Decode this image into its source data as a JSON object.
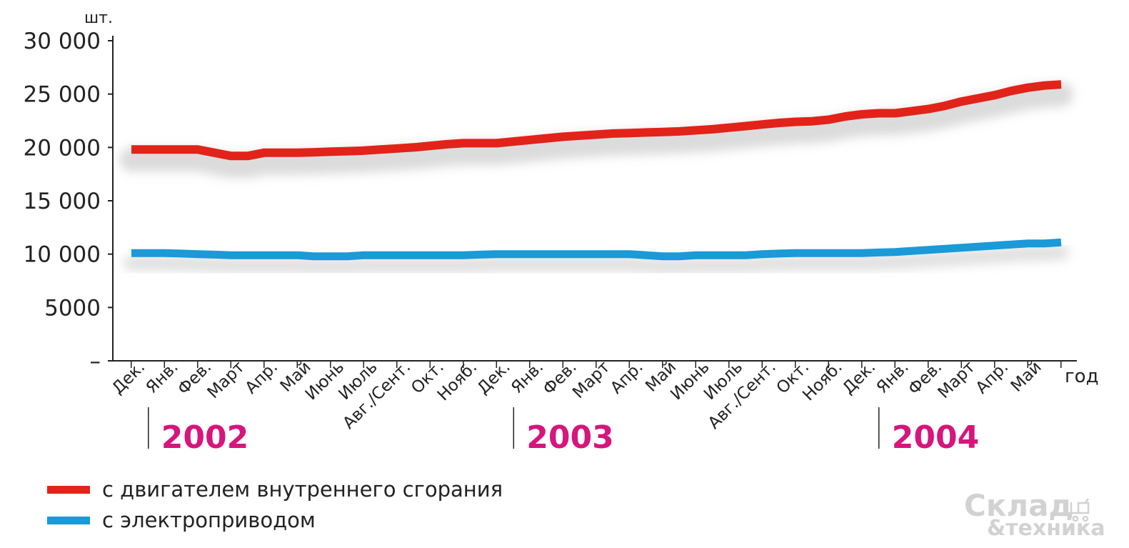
{
  "chart_data": {
    "type": "line",
    "ylabel": "шт.",
    "xlabel": "год",
    "ylim": [
      0,
      30000
    ],
    "y_ticks": [
      {
        "value": 30000,
        "label": "30 000"
      },
      {
        "value": 25000,
        "label": "25 000"
      },
      {
        "value": 20000,
        "label": "20 000"
      },
      {
        "value": 15000,
        "label": "15 000"
      },
      {
        "value": 10000,
        "label": "10 000"
      },
      {
        "value": 5000,
        "label": "5000"
      },
      {
        "value": 0,
        "label": "–"
      }
    ],
    "categories": [
      "Дек.",
      "Янв.",
      "Фев.",
      "Март",
      "Апр.",
      "Май",
      "Июнь",
      "Июль",
      "Авг./Сент.",
      "Окт.",
      "Нояб.",
      "Дек.",
      "Янв.",
      "Фев.",
      "Март",
      "Апр.",
      "Май",
      "Июнь",
      "Июль",
      "Авг./Сент.",
      "Окт.",
      "Нояб.",
      "Дек.",
      "Янв.",
      "Фев.",
      "Март",
      "Апр.",
      "Май"
    ],
    "year_groups": [
      {
        "label": "2002",
        "start_index": 1
      },
      {
        "label": "2003",
        "start_index": 12
      },
      {
        "label": "2004",
        "start_index": 23
      }
    ],
    "series": [
      {
        "name": "с двигателем внутреннего сгорания",
        "color": "#e2231a",
        "x": [
          0,
          0.5,
          1,
          1.5,
          2,
          2.5,
          3,
          3.5,
          4,
          4.5,
          5,
          5.5,
          6,
          6.5,
          7,
          7.5,
          8,
          8.5,
          9,
          9.5,
          10,
          10.5,
          11,
          11.5,
          12,
          12.5,
          13,
          13.5,
          14,
          14.5,
          15,
          15.5,
          16,
          16.5,
          17,
          17.5,
          18,
          18.5,
          19,
          19.5,
          20,
          20.5,
          21,
          21.5,
          22,
          22.5,
          23,
          23.5,
          24,
          24.5,
          25,
          25.5,
          26,
          26.5,
          27,
          27.5,
          28
        ],
        "values": [
          19800,
          19800,
          19800,
          19800,
          19800,
          19500,
          19200,
          19200,
          19500,
          19500,
          19500,
          19550,
          19600,
          19650,
          19700,
          19800,
          19900,
          20000,
          20150,
          20300,
          20400,
          20400,
          20400,
          20550,
          20700,
          20850,
          21000,
          21100,
          21200,
          21300,
          21350,
          21400,
          21450,
          21500,
          21600,
          21700,
          21850,
          22000,
          22150,
          22300,
          22400,
          22450,
          22600,
          22900,
          23100,
          23200,
          23200,
          23400,
          23600,
          23900,
          24300,
          24600,
          24900,
          25300,
          25600,
          25800,
          25900
        ]
      },
      {
        "name": "с электроприводом",
        "color": "#1a9ad7",
        "x": [
          0,
          0.5,
          1,
          1.5,
          2,
          2.5,
          3,
          3.5,
          4,
          4.5,
          5,
          5.5,
          6,
          6.5,
          7,
          7.5,
          8,
          8.5,
          9,
          9.5,
          10,
          10.5,
          11,
          11.5,
          12,
          12.5,
          13,
          13.5,
          14,
          14.5,
          15,
          15.5,
          16,
          16.5,
          17,
          17.5,
          18,
          18.5,
          19,
          19.5,
          20,
          20.5,
          21,
          21.5,
          22,
          22.5,
          23,
          23.5,
          24,
          24.5,
          25,
          25.5,
          26,
          26.5,
          27,
          27.5,
          28
        ],
        "values": [
          10100,
          10100,
          10100,
          10050,
          10000,
          9950,
          9900,
          9900,
          9900,
          9900,
          9900,
          9800,
          9800,
          9800,
          9900,
          9900,
          9900,
          9900,
          9900,
          9900,
          9900,
          9950,
          10000,
          10000,
          10000,
          10000,
          10000,
          10000,
          10000,
          10000,
          10000,
          9900,
          9800,
          9800,
          9900,
          9900,
          9900,
          9900,
          10000,
          10050,
          10100,
          10100,
          10100,
          10100,
          10100,
          10150,
          10200,
          10300,
          10400,
          10500,
          10600,
          10700,
          10800,
          10900,
          11000,
          11000,
          11100
        ]
      }
    ]
  },
  "watermark": {
    "main": "Склад",
    "sub": "&техника"
  }
}
